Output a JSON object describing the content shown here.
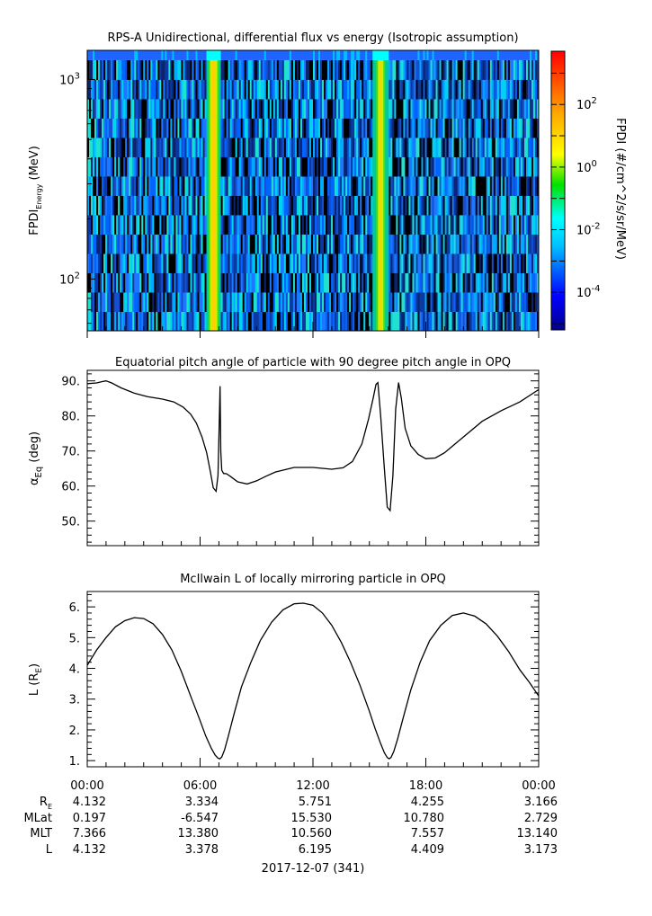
{
  "chart_data": [
    {
      "type": "heatmap",
      "title": "RPS-A Unidirectional, differential flux vs energy (Isotropic assumption)",
      "ylabel_main": "FPDI",
      "ylabel_sub": "Energy",
      "ylabel_unit": " (MeV)",
      "y_scale": "log",
      "ylim": [
        55,
        1400
      ],
      "y_ticks": [
        {
          "value": 100,
          "base": "10",
          "exp": "2"
        },
        {
          "value": 1000,
          "base": "10",
          "exp": "3"
        }
      ],
      "energy_channels": 14,
      "x_range_hours": [
        0,
        24
      ],
      "x_tick_hours": [
        0,
        6,
        12,
        18,
        24
      ],
      "bright_bands": [
        {
          "center_hours": 6.75,
          "halfwidth_hours": 0.25
        },
        {
          "center_hours": 15.6,
          "halfwidth_hours": 0.25
        }
      ],
      "colorbar": {
        "label": "FPDI (#/cm^2/s/sr/MeV)",
        "scale": "log",
        "range_log10": [
          -5.2,
          3.7
        ],
        "ticks": [
          {
            "base": "10",
            "exp": "2",
            "log10": 2
          },
          {
            "base": "10",
            "exp": "0",
            "log10": 0
          },
          {
            "base": "10",
            "exp": "-2",
            "log10": -2
          },
          {
            "base": "10",
            "exp": "-4",
            "log10": -4
          }
        ]
      }
    },
    {
      "type": "line",
      "title": "Equatorial pitch angle of particle with 90 degree pitch angle in OPQ",
      "ylabel_main": "α",
      "ylabel_sub": "Eq",
      "ylabel_unit": " (deg)",
      "ylim": [
        43,
        93
      ],
      "y_ticks": [
        "50.",
        "60.",
        "70.",
        "80.",
        "90."
      ],
      "x_range_hours": [
        0,
        24
      ],
      "series": [
        {
          "x": [
            0,
            0.5,
            0.8,
            1.0,
            1.3,
            1.8,
            2.5,
            3.2,
            4.0,
            4.6,
            5.1,
            5.5,
            5.8,
            6.1,
            6.35,
            6.55,
            6.7,
            6.85,
            6.95,
            7.02,
            7.06,
            7.1,
            7.15,
            7.25,
            7.4,
            7.6,
            8.0,
            8.5,
            9.0,
            9.5,
            10.0,
            11.0,
            12.0,
            13.0,
            13.6,
            14.1,
            14.6,
            14.95,
            15.2,
            15.35,
            15.45,
            15.6,
            15.78,
            15.95,
            16.1,
            16.25,
            16.4,
            16.55,
            16.7,
            16.9,
            17.2,
            17.6,
            18.0,
            18.5,
            19.0,
            20.0,
            21.0,
            22.0,
            23.0,
            24.0
          ],
          "y": [
            89.2,
            89.4,
            89.8,
            90.0,
            89.4,
            88.0,
            86.5,
            85.5,
            84.8,
            84.0,
            82.5,
            80.5,
            78.0,
            74.0,
            69.5,
            64.0,
            59.5,
            58.5,
            63.0,
            78.0,
            88.5,
            70.0,
            64.5,
            63.6,
            63.5,
            62.8,
            61.2,
            60.6,
            61.5,
            62.8,
            64.0,
            65.3,
            65.3,
            64.8,
            65.2,
            67.0,
            72.0,
            79.0,
            85.0,
            89.0,
            89.5,
            80.0,
            66.0,
            54.0,
            53.0,
            63.0,
            82.0,
            89.5,
            85.0,
            76.5,
            71.5,
            69.0,
            67.8,
            68.0,
            69.5,
            74.0,
            78.5,
            81.5,
            84.0,
            87.5
          ]
        }
      ]
    },
    {
      "type": "line",
      "title": "McIlwain L of locally mirroring particle in OPQ",
      "ylabel_main": "L (R",
      "ylabel_sub": "E",
      "ylabel_unit": ")",
      "ylim": [
        0.8,
        6.5
      ],
      "y_ticks": [
        "1.",
        "2.",
        "3.",
        "4.",
        "5.",
        "6."
      ],
      "x_range_hours": [
        0,
        24
      ],
      "series": [
        {
          "x": [
            0,
            0.5,
            1,
            1.5,
            2,
            2.5,
            3,
            3.5,
            4,
            4.5,
            5,
            5.5,
            6,
            6.3,
            6.6,
            6.8,
            6.95,
            7.05,
            7.15,
            7.3,
            7.5,
            7.8,
            8.2,
            8.7,
            9.2,
            9.8,
            10.4,
            11.0,
            11.5,
            12.0,
            12.5,
            13.0,
            13.5,
            14.0,
            14.5,
            15.0,
            15.3,
            15.6,
            15.8,
            15.95,
            16.05,
            16.15,
            16.3,
            16.5,
            16.8,
            17.2,
            17.7,
            18.2,
            18.8,
            19.4,
            20.0,
            20.6,
            21.2,
            21.8,
            22.4,
            23.0,
            23.5,
            24.0
          ],
          "y": [
            4.1,
            4.6,
            5.0,
            5.35,
            5.55,
            5.65,
            5.62,
            5.45,
            5.1,
            4.6,
            3.9,
            3.1,
            2.3,
            1.8,
            1.4,
            1.18,
            1.08,
            1.06,
            1.12,
            1.35,
            1.8,
            2.5,
            3.4,
            4.2,
            4.9,
            5.5,
            5.9,
            6.1,
            6.12,
            6.05,
            5.8,
            5.4,
            4.85,
            4.2,
            3.45,
            2.6,
            2.05,
            1.55,
            1.25,
            1.1,
            1.06,
            1.1,
            1.3,
            1.7,
            2.4,
            3.3,
            4.2,
            4.9,
            5.4,
            5.72,
            5.8,
            5.7,
            5.45,
            5.05,
            4.55,
            3.95,
            3.55,
            3.1
          ]
        }
      ]
    }
  ],
  "x_ticks": [
    "00:00",
    "06:00",
    "12:00",
    "18:00",
    "00:00"
  ],
  "ephemeris": {
    "labels": {
      "re": "R",
      "re_sub": "E",
      "mlat": "MLat",
      "mlt": "MLT",
      "l": "L"
    },
    "columns": [
      {
        "re": "4.132",
        "mlat": "0.197",
        "mlt": "7.366",
        "l": "4.132"
      },
      {
        "re": "3.334",
        "mlat": "-6.547",
        "mlt": "13.380",
        "l": "3.378"
      },
      {
        "re": "5.751",
        "mlat": "15.530",
        "mlt": "10.560",
        "l": "6.195"
      },
      {
        "re": "4.255",
        "mlat": "10.780",
        "mlt": "7.557",
        "l": "4.409"
      },
      {
        "re": "3.166",
        "mlat": "2.729",
        "mlt": "13.140",
        "l": "3.173"
      }
    ]
  },
  "date_label": "2017-12-07 (341)"
}
